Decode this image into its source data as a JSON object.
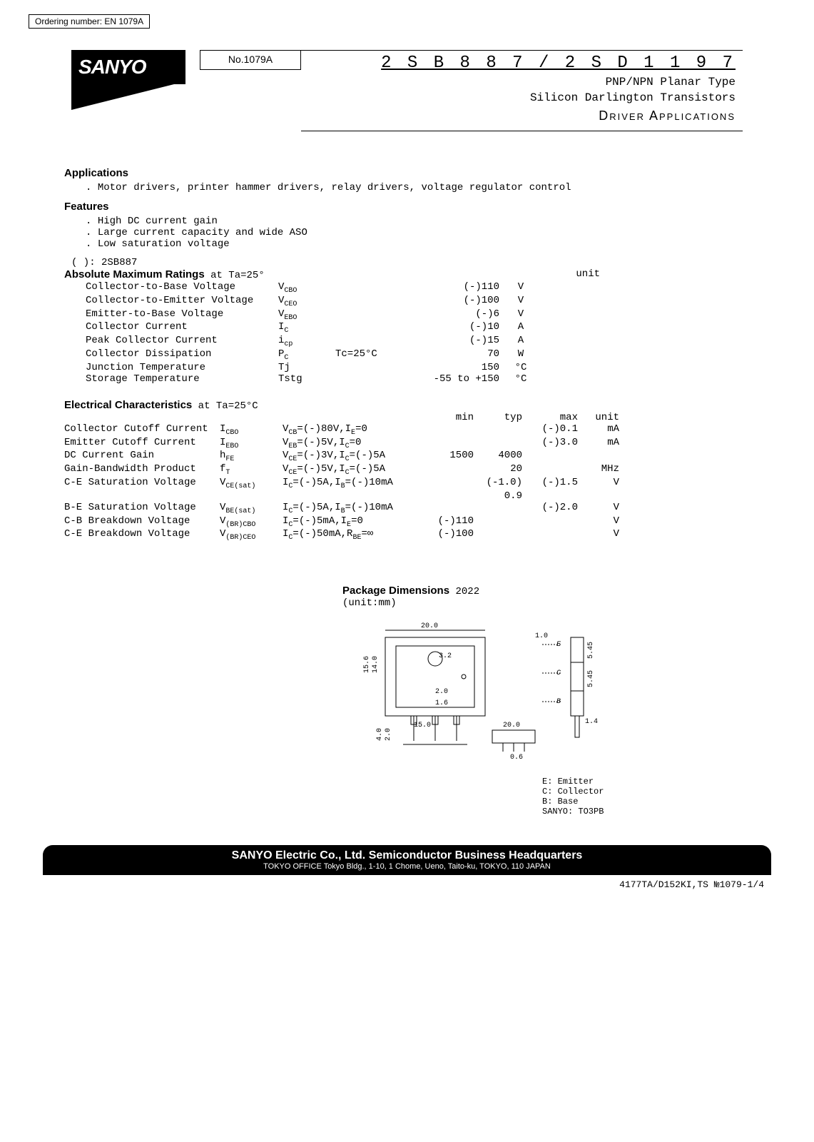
{
  "ordering": "Ordering number: EN 1079A",
  "logo": "SANYO",
  "doc_no": "No.1079A",
  "part_no": "2 S B 8 8 7 / 2 S D 1 1 9 7",
  "subtitle1": "PNP/NPN Planar Type",
  "subtitle2": "Silicon Darlington Transistors",
  "app_title": "Driver Applications",
  "sections": {
    "applications_h": "Applications",
    "applications_text": "Motor drivers, printer hammer drivers, relay drivers, voltage regulator control",
    "features_h": "Features",
    "features": [
      "High DC current gain",
      "Large current capacity and wide ASO",
      "Low saturation voltage"
    ],
    "note": "( ): 2SB887"
  },
  "abs_heading": "Absolute Maximum Ratings",
  "abs_cond": " at Ta=25°",
  "abs_unit_label": "unit",
  "abs_rows": [
    {
      "param": "Collector-to-Base Voltage",
      "sym": "V",
      "sub": "CBO",
      "cond": "",
      "val": "(-)110",
      "unit": "V"
    },
    {
      "param": "Collector-to-Emitter Voltage",
      "sym": "V",
      "sub": "CEO",
      "cond": "",
      "val": "(-)100",
      "unit": "V"
    },
    {
      "param": "Emitter-to-Base Voltage",
      "sym": "V",
      "sub": "EBO",
      "cond": "",
      "val": "(-)6",
      "unit": "V"
    },
    {
      "param": "Collector Current",
      "sym": "I",
      "sub": "C",
      "cond": "",
      "val": "(-)10",
      "unit": "A"
    },
    {
      "param": "Peak Collector Current",
      "sym": "i",
      "sub": "cp",
      "cond": "",
      "val": "(-)15",
      "unit": "A"
    },
    {
      "param": "Collector Dissipation",
      "sym": "P",
      "sub": "C",
      "cond": "Tc=25°C",
      "val": "70",
      "unit": "W"
    },
    {
      "param": "Junction Temperature",
      "sym": "Tj",
      "sub": "",
      "cond": "",
      "val": "150",
      "unit": "°C"
    },
    {
      "param": "Storage Temperature",
      "sym": "Tstg",
      "sub": "",
      "cond": "",
      "val": "-55 to +150",
      "unit": "°C"
    }
  ],
  "elec_heading": "Electrical Characteristics",
  "elec_cond": " at Ta=25°C",
  "elec_headers": {
    "min": "min",
    "typ": "typ",
    "max": "max",
    "unit": "unit"
  },
  "elec_rows": [
    {
      "param": "Collector Cutoff Current",
      "sym": "I",
      "sub": "CBO",
      "cond": "V<sub>CB</sub>=(-)80V,I<sub>E</sub>=0",
      "min": "",
      "typ": "",
      "max": "(-)0.1",
      "unit": "mA"
    },
    {
      "param": "Emitter Cutoff Current",
      "sym": "I",
      "sub": "EBO",
      "cond": "V<sub>EB</sub>=(-)5V,I<sub>C</sub>=0",
      "min": "",
      "typ": "",
      "max": "(-)3.0",
      "unit": "mA"
    },
    {
      "param": "DC Current Gain",
      "sym": "h",
      "sub": "FE",
      "cond": "V<sub>CE</sub>=(-)3V,I<sub>C</sub>=(-)5A",
      "min": "1500",
      "typ": "4000",
      "max": "",
      "unit": ""
    },
    {
      "param": "Gain-Bandwidth Product",
      "sym": "f",
      "sub": "T",
      "cond": "V<sub>CE</sub>=(-)5V,I<sub>C</sub>=(-)5A",
      "min": "",
      "typ": "20",
      "max": "",
      "unit": "MHz"
    },
    {
      "param": "C-E Saturation Voltage",
      "sym": "V",
      "sub": "CE(sat)",
      "cond": "I<sub>C</sub>=(-)5A,I<sub>B</sub>=(-)10mA",
      "min": "",
      "typ": "(-1.0)",
      "typ2": "0.9",
      "max": "(-)1.5",
      "unit": "V"
    },
    {
      "param": "B-E Saturation Voltage",
      "sym": "V",
      "sub": "BE(sat)",
      "cond": "I<sub>C</sub>=(-)5A,I<sub>B</sub>=(-)10mA",
      "min": "",
      "typ": "",
      "max": "(-)2.0",
      "unit": "V"
    },
    {
      "param": "C-B Breakdown Voltage",
      "sym": "V",
      "sub": "(BR)CBO",
      "cond": "I<sub>C</sub>=(-)5mA,I<sub>E</sub>=0",
      "min": "(-)110",
      "typ": "",
      "max": "",
      "unit": "V"
    },
    {
      "param": "C-E Breakdown Voltage",
      "sym": "V",
      "sub": "(BR)CEO",
      "cond": "I<sub>C</sub>=(-)50mA,R<sub>BE</sub>=∞",
      "min": "(-)100",
      "typ": "",
      "max": "",
      "unit": "V"
    }
  ],
  "pkg": {
    "heading": "Package Dimensions",
    "code": "2022",
    "unit": "(unit:mm)",
    "dims": {
      "w_outer": "20.0",
      "w_inner": "15.0",
      "h_outer": "15.6",
      "h_inner": "14.0",
      "hole_dia": "3.2",
      "lead_h": "4.0",
      "lead_w": "2.0",
      "lead_th": "0.6",
      "tab_h": "1.0",
      "lead_sp": "2.0",
      "body_th": "1.6",
      "side_h1": "5.45",
      "side_h2": "5.45",
      "side_w": "1.4",
      "lead_len": "20.0"
    },
    "pins": [
      {
        "sym": "E",
        "name": "Emitter"
      },
      {
        "sym": "C",
        "name": "Collector"
      },
      {
        "sym": "B",
        "name": "Base"
      }
    ],
    "pkg_name": "SANYO: TO3PB"
  },
  "footer": {
    "main": "SANYO Electric Co., Ltd. Semiconductor Business Headquarters",
    "sub": "TOKYO OFFICE Tokyo Bldg., 1-10, 1 Chome, Ueno, Taito-ku, TOKYO, 110 JAPAN"
  },
  "page_no": "4177TA/D152KI,TS №1079-1/4"
}
